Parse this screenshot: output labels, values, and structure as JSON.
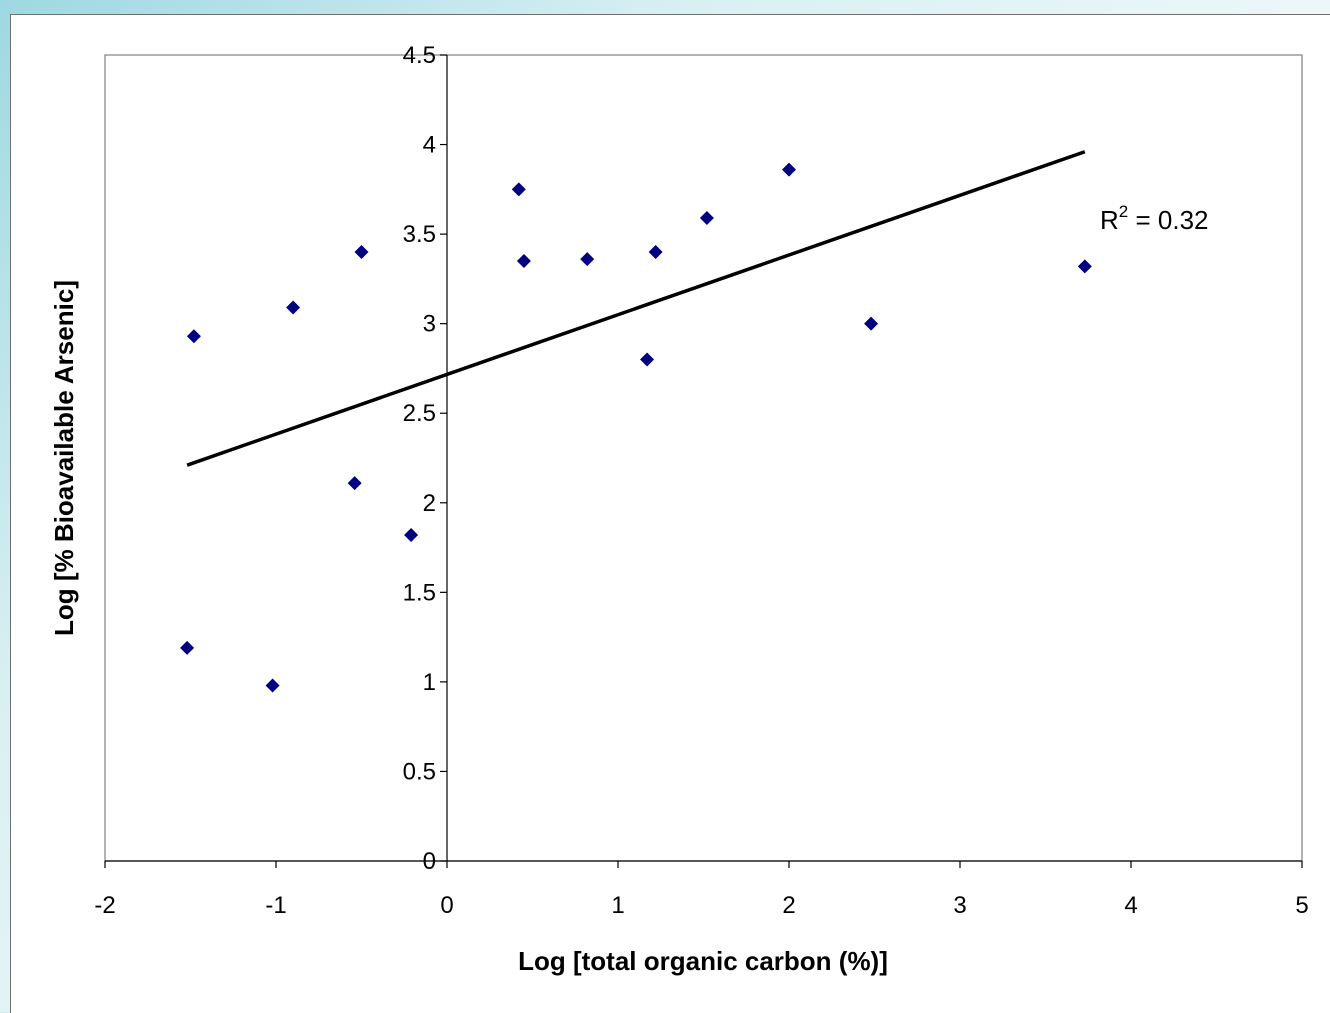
{
  "chart_data": {
    "type": "scatter",
    "title": "",
    "xlabel": "Log [total organic carbon (%)]",
    "ylabel": "Log [% Bioavailable Arsenic]",
    "xlim": [
      -2,
      5
    ],
    "ylim": [
      0,
      4.5
    ],
    "x_ticks": [
      "-2",
      "-1",
      "0",
      "1",
      "2",
      "3",
      "4",
      "5"
    ],
    "y_ticks": [
      "0",
      "0.5",
      "1",
      "1.5",
      "2",
      "2.5",
      "3",
      "3.5",
      "4",
      "4.5"
    ],
    "grid": false,
    "legend": "none",
    "marker": "diamond",
    "marker_color": "#000080",
    "points": [
      {
        "x": -1.52,
        "y": 1.19
      },
      {
        "x": -1.48,
        "y": 2.93
      },
      {
        "x": -1.02,
        "y": 0.98
      },
      {
        "x": -0.9,
        "y": 3.09
      },
      {
        "x": -0.54,
        "y": 2.11
      },
      {
        "x": -0.5,
        "y": 3.4
      },
      {
        "x": -0.21,
        "y": 1.82
      },
      {
        "x": 0.42,
        "y": 3.75
      },
      {
        "x": 0.45,
        "y": 3.35
      },
      {
        "x": 0.82,
        "y": 3.36
      },
      {
        "x": 1.17,
        "y": 2.8
      },
      {
        "x": 1.22,
        "y": 3.4
      },
      {
        "x": 1.52,
        "y": 3.59
      },
      {
        "x": 2.0,
        "y": 3.86
      },
      {
        "x": 2.48,
        "y": 3.0
      },
      {
        "x": 3.73,
        "y": 3.32
      }
    ],
    "trendline": {
      "type": "linear",
      "x_start": -1.52,
      "y_start": 2.21,
      "x_end": 3.73,
      "y_end": 3.96,
      "color": "#000000"
    },
    "annotation": {
      "r_label": "R",
      "r_superscript": "2",
      "r_value_text": " = 0.32"
    }
  }
}
